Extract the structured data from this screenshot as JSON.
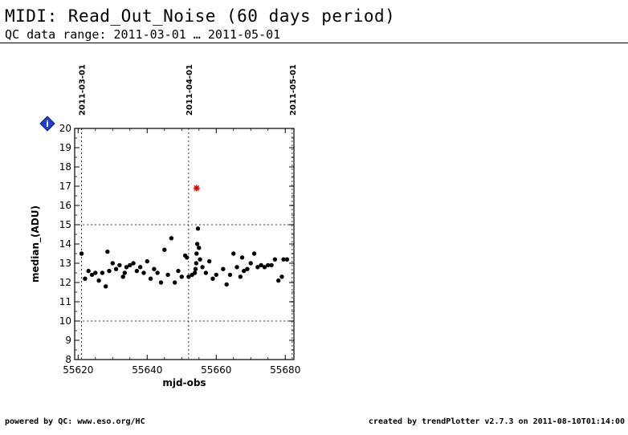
{
  "header": {
    "title": "MIDI: Read_Out_Noise (60 days period)",
    "subtitle": "QC data range: 2011-03-01 … 2011-05-01"
  },
  "footer": {
    "left": "powered by QC: www.eso.org/HC",
    "right": "created by trendPlotter v2.7.3 on 2011-08-10T01:14:00"
  },
  "info_icon_label": "i",
  "chart_data": {
    "type": "scatter",
    "xlabel": "mjd-obs",
    "ylabel": "median_(ADU)",
    "xlim": [
      55619,
      55682.5
    ],
    "ylim": [
      8,
      20
    ],
    "x_ticks": [
      55620,
      55640,
      55660,
      55680
    ],
    "y_ticks": [
      8,
      9,
      10,
      11,
      12,
      13,
      14,
      15,
      16,
      17,
      18,
      19,
      20
    ],
    "y_dotted_lines": [
      10,
      15
    ],
    "date_markers": [
      {
        "label": "2011-03-01",
        "mjd": 55621
      },
      {
        "label": "2011-04-01",
        "mjd": 55652
      },
      {
        "label": "2011-05-01",
        "mjd": 55682
      }
    ],
    "series": [
      {
        "marker": "dot",
        "color": "#000000",
        "points": [
          [
            55621,
            13.5
          ],
          [
            55622,
            12.2
          ],
          [
            55623,
            12.6
          ],
          [
            55624,
            12.4
          ],
          [
            55625,
            12.5
          ],
          [
            55626,
            12.1
          ],
          [
            55627,
            12.5
          ],
          [
            55628,
            11.8
          ],
          [
            55628.5,
            13.6
          ],
          [
            55629,
            12.6
          ],
          [
            55630,
            13.0
          ],
          [
            55631,
            12.7
          ],
          [
            55632,
            12.9
          ],
          [
            55633,
            12.3
          ],
          [
            55633.5,
            12.5
          ],
          [
            55634,
            12.8
          ],
          [
            55635,
            12.9
          ],
          [
            55636,
            13.0
          ],
          [
            55637,
            12.6
          ],
          [
            55638,
            12.8
          ],
          [
            55639,
            12.5
          ],
          [
            55640,
            13.1
          ],
          [
            55641,
            12.2
          ],
          [
            55642,
            12.7
          ],
          [
            55643,
            12.5
          ],
          [
            55644,
            12.0
          ],
          [
            55645,
            13.7
          ],
          [
            55646,
            12.4
          ],
          [
            55647,
            14.3
          ],
          [
            55648,
            12.0
          ],
          [
            55649,
            12.6
          ],
          [
            55650,
            12.3
          ],
          [
            55651,
            13.4
          ],
          [
            55651.5,
            13.3
          ],
          [
            55652,
            12.3
          ],
          [
            55653,
            12.4
          ],
          [
            55653.8,
            12.5
          ],
          [
            55654,
            12.7
          ],
          [
            55654.2,
            13.0
          ],
          [
            55654.3,
            13.5
          ],
          [
            55654.5,
            14.0
          ],
          [
            55654.7,
            14.8
          ],
          [
            55655,
            13.8
          ],
          [
            55655.3,
            13.2
          ],
          [
            55656,
            12.8
          ],
          [
            55657,
            12.5
          ],
          [
            55658,
            13.1
          ],
          [
            55659,
            12.2
          ],
          [
            55660,
            12.4
          ],
          [
            55662,
            12.7
          ],
          [
            55663,
            11.9
          ],
          [
            55664,
            12.4
          ],
          [
            55665,
            13.5
          ],
          [
            55666,
            12.8
          ],
          [
            55667,
            12.3
          ],
          [
            55667.5,
            13.3
          ],
          [
            55668,
            12.6
          ],
          [
            55669,
            12.7
          ],
          [
            55670,
            13.0
          ],
          [
            55671,
            13.5
          ],
          [
            55672,
            12.8
          ],
          [
            55673,
            12.9
          ],
          [
            55674,
            12.8
          ],
          [
            55675,
            12.9
          ],
          [
            55676,
            12.9
          ],
          [
            55677,
            13.2
          ],
          [
            55678,
            12.1
          ],
          [
            55679,
            12.3
          ],
          [
            55679.5,
            13.2
          ],
          [
            55680.5,
            13.2
          ]
        ]
      },
      {
        "marker": "star",
        "color": "#cc0000",
        "points": [
          [
            55654.3,
            16.9
          ]
        ]
      }
    ]
  }
}
